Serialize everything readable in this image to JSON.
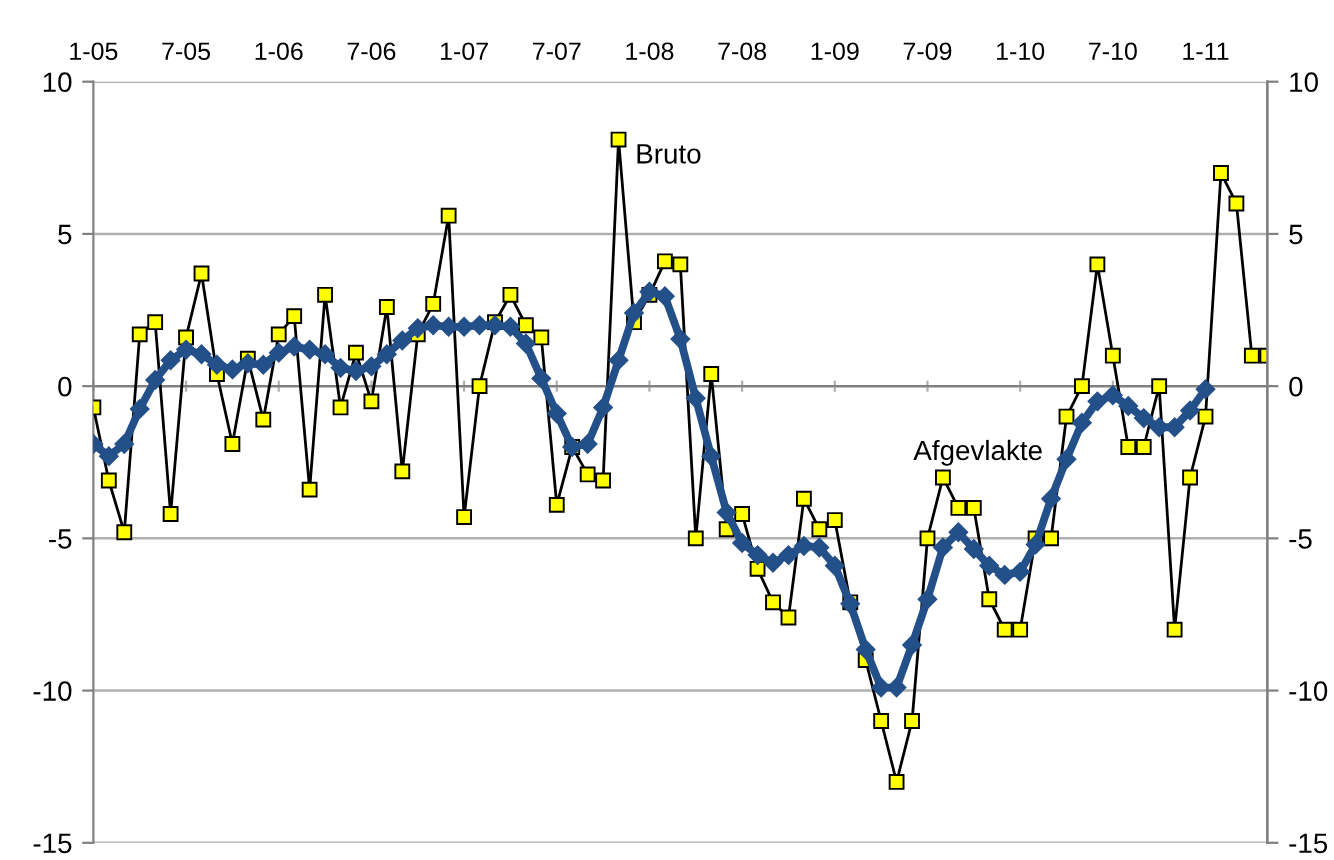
{
  "chart_data": {
    "type": "line",
    "categories": [
      "1-05",
      null,
      null,
      null,
      null,
      null,
      "7-05",
      null,
      null,
      null,
      null,
      null,
      "1-06",
      null,
      null,
      null,
      null,
      null,
      "7-06",
      null,
      null,
      null,
      null,
      null,
      "1-07",
      null,
      null,
      null,
      null,
      null,
      "7-07",
      null,
      null,
      null,
      null,
      null,
      "1-08",
      null,
      null,
      null,
      null,
      null,
      "7-08",
      null,
      null,
      null,
      null,
      null,
      "1-09",
      null,
      null,
      null,
      null,
      null,
      "7-09",
      null,
      null,
      null,
      null,
      null,
      "1-10",
      null,
      null,
      null,
      null,
      null,
      "7-10",
      null,
      null,
      null,
      null,
      null,
      "1-11",
      null,
      null,
      null,
      null
    ],
    "series": [
      {
        "name": "Bruto",
        "color": "#ffff00",
        "marker": "square",
        "values": [
          -0.7,
          -3.1,
          -4.8,
          1.7,
          2.1,
          -4.2,
          1.6,
          3.7,
          0.4,
          -1.9,
          0.9,
          -1.1,
          1.7,
          2.3,
          -3.4,
          3.0,
          -0.7,
          1.1,
          -0.5,
          2.6,
          -2.8,
          1.7,
          2.7,
          5.6,
          -4.3,
          0.0,
          2.1,
          3.0,
          2.0,
          1.6,
          -3.9,
          -2.0,
          -2.9,
          -3.1,
          8.1,
          2.1,
          3.0,
          4.1,
          4.0,
          -5.0,
          0.4,
          -4.7,
          -4.2,
          -6.0,
          -7.1,
          -7.6,
          -3.7,
          -4.7,
          -4.4,
          -7.1,
          -9.0,
          -11.0,
          -13.0,
          -11.0,
          -5.0,
          -3.0,
          -4.0,
          -4.0,
          -7.0,
          -8.0,
          -8.0,
          -5.0,
          -5.0,
          -1.0,
          0.0,
          4.0,
          1.0,
          -2.0,
          -2.0,
          0.0,
          -8.0,
          -3.0,
          -1.0,
          7.0,
          6.0,
          1.0,
          1.0
        ]
      },
      {
        "name": "Afgevlakte",
        "color": "#24508a",
        "marker": "diamond",
        "values": [
          -1.9,
          -2.3,
          -1.9,
          -0.75,
          0.2,
          0.85,
          1.2,
          1.05,
          0.7,
          0.55,
          0.75,
          0.7,
          1.1,
          1.3,
          1.2,
          1.05,
          0.6,
          0.5,
          0.65,
          1.05,
          1.5,
          1.9,
          2.0,
          1.95,
          1.95,
          2.0,
          2.0,
          1.95,
          1.4,
          0.25,
          -0.9,
          -2.0,
          -1.9,
          -0.7,
          0.85,
          2.4,
          3.1,
          2.95,
          1.55,
          -0.4,
          -2.3,
          -4.15,
          -5.15,
          -5.55,
          -5.8,
          -5.55,
          -5.25,
          -5.3,
          -5.9,
          -7.15,
          -8.65,
          -9.9,
          -9.9,
          -8.5,
          -7.0,
          -5.3,
          -4.8,
          -5.35,
          -5.9,
          -6.2,
          -6.1,
          -5.2,
          -3.7,
          -2.4,
          -1.2,
          -0.5,
          -0.3,
          -0.65,
          -1.05,
          -1.35,
          -1.35,
          -0.8,
          -0.1,
          null,
          null,
          null,
          null
        ]
      }
    ],
    "ylim": [
      -15,
      10
    ],
    "yticks": [
      -15,
      -10,
      -5,
      0,
      5,
      10
    ],
    "y2lim": [
      -15,
      10
    ],
    "y2ticks": [
      -15,
      -10,
      -5,
      0,
      5,
      10
    ],
    "grid": "y",
    "legend": false,
    "line_style": "solid"
  }
}
